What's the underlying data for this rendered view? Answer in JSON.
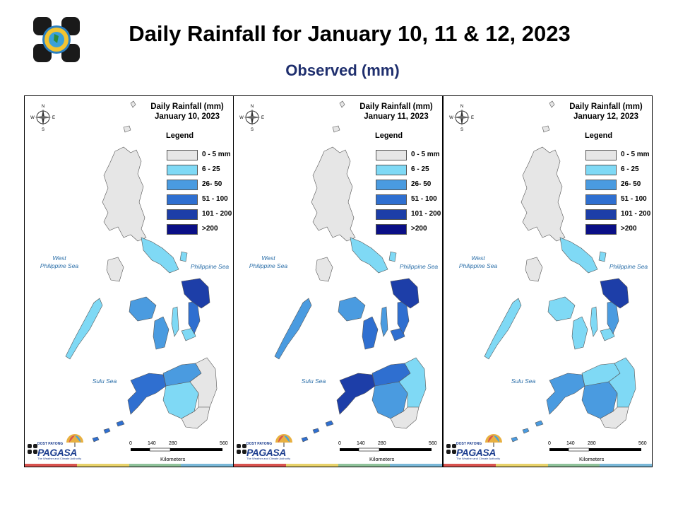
{
  "header": {
    "title": "Daily Rainfall for January 10, 11 & 12, 2023",
    "subtitle": "Observed (mm)"
  },
  "legend": {
    "heading": "Legend",
    "classes": [
      {
        "label": "0 - 5 mm",
        "color": "#e6e6e6"
      },
      {
        "label": "6 - 25",
        "color": "#7fd9f5"
      },
      {
        "label": "26- 50",
        "color": "#4a9be0"
      },
      {
        "label": "51 - 100",
        "color": "#2f6fd0"
      },
      {
        "label": "101 - 200",
        "color": "#1d3ea8"
      },
      {
        "label": ">200",
        "color": "#0a0f86"
      }
    ]
  },
  "labels": {
    "west_sea": "West\nPhilippine Sea",
    "phil_sea": "Philippine Sea",
    "sulu_sea": "Sulu Sea",
    "scale_ticks": [
      "0",
      "140",
      "280",
      "560"
    ],
    "scale_unit": "Kilometers",
    "compass": {
      "n": "N",
      "s": "S",
      "e": "E",
      "w": "W"
    },
    "branding": {
      "name": "PAGASA",
      "prefix": "DOST PAYONG",
      "tagline": "The Weather and Climate Authority"
    }
  },
  "panels": [
    {
      "title_line1": "Daily Rainfall (mm)",
      "title_line2": "January 10, 2023",
      "regions": {
        "luzon": "#e6e6e6",
        "bicol": "#7fd9f5",
        "mindoro": "#e6e6e6",
        "panay": "#4a9be0",
        "negros": "#4a9be0",
        "cebu": "#7fd9f5",
        "bohol": "#7fd9f5",
        "leyte": "#2f6fd0",
        "samar": "#1d3ea8",
        "palawan": "#7fd9f5",
        "zamboanga": "#2f6fd0",
        "northmin": "#4a9be0",
        "centralmin": "#7fd9f5",
        "eastmin": "#e6e6e6",
        "southmin": "#e6e6e6",
        "sulu": "#2f6fd0"
      }
    },
    {
      "title_line1": "Daily Rainfall (mm)",
      "title_line2": "January 11, 2023",
      "regions": {
        "luzon": "#e6e6e6",
        "bicol": "#7fd9f5",
        "mindoro": "#e6e6e6",
        "panay": "#4a9be0",
        "negros": "#2f6fd0",
        "cebu": "#4a9be0",
        "bohol": "#2f6fd0",
        "leyte": "#2f6fd0",
        "samar": "#1d3ea8",
        "palawan": "#4a9be0",
        "zamboanga": "#1d3ea8",
        "northmin": "#2f6fd0",
        "centralmin": "#4a9be0",
        "eastmin": "#7fd9f5",
        "southmin": "#e6e6e6",
        "sulu": "#2f6fd0"
      }
    },
    {
      "title_line1": "Daily Rainfall (mm)",
      "title_line2": "January 12, 2023",
      "regions": {
        "luzon": "#e6e6e6",
        "bicol": "#7fd9f5",
        "mindoro": "#e6e6e6",
        "panay": "#7fd9f5",
        "negros": "#7fd9f5",
        "cebu": "#7fd9f5",
        "bohol": "#7fd9f5",
        "leyte": "#4a9be0",
        "samar": "#1d3ea8",
        "palawan": "#7fd9f5",
        "zamboanga": "#4a9be0",
        "northmin": "#7fd9f5",
        "centralmin": "#4a9be0",
        "eastmin": "#7fd9f5",
        "southmin": "#e6e6e6",
        "sulu": "#4a9be0"
      }
    }
  ],
  "footer_band_colors": [
    "#d9534f",
    "#e8d26a",
    "#8fc29a",
    "#7ab8d8"
  ]
}
